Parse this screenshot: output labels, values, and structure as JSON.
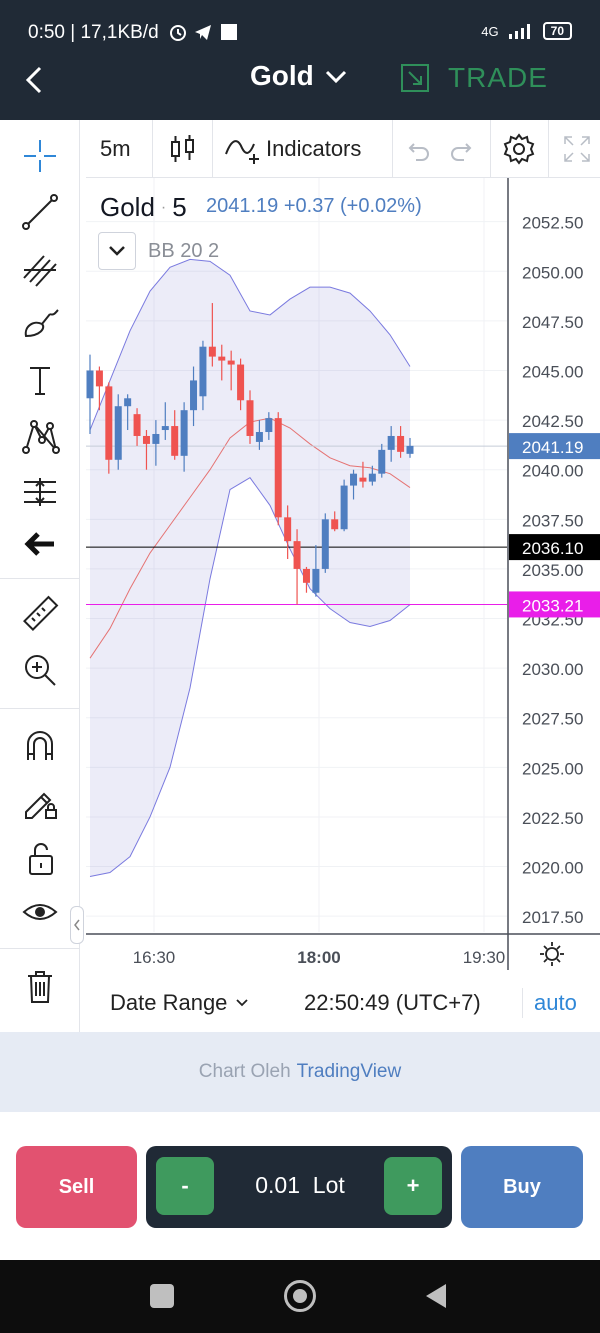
{
  "status_bar": {
    "left_text": "0:50 | 17,1KB/d",
    "network": "4G",
    "battery": "70"
  },
  "header": {
    "title": "Gold",
    "trade_label": "TRADE",
    "accent_green": "#2f8f5a"
  },
  "chart_toolbar": {
    "interval": "5m",
    "indicators_label": "Indicators"
  },
  "legend": {
    "symbol": "Gold",
    "interval": "5",
    "price_info": "2041.19 +0.37 (+0.02%)",
    "indicator_name": "BB",
    "indicator_params": "20 2"
  },
  "chart_data": {
    "type": "candlestick",
    "y_axis_ticks": [
      "2052.50",
      "2050.00",
      "2047.50",
      "2045.00",
      "2042.50",
      "2040.00",
      "2037.50",
      "2035.00",
      "2032.50",
      "2030.00",
      "2027.50",
      "2025.00",
      "2022.50",
      "2020.00",
      "2017.50"
    ],
    "x_axis_ticks": [
      "16:30",
      "18:00",
      "19:30"
    ],
    "ylim": [
      2016.5,
      2054.5
    ],
    "price_labels": [
      {
        "text": "2041.19",
        "value": 2041.19,
        "bg": "#4f7ec0",
        "fg": "#ffffff"
      },
      {
        "text": "2036.10",
        "value": 2036.1,
        "bg": "#000000",
        "fg": "#ffffff"
      },
      {
        "text": "2033.21",
        "value": 2033.21,
        "bg": "#e91ee9",
        "fg": "#ffffff"
      }
    ],
    "up_color": "#4f7ec0",
    "down_color": "#ef5350",
    "candles": [
      {
        "o": 2043.6,
        "h": 2045.8,
        "l": 2041.8,
        "c": 2045.0
      },
      {
        "o": 2045.0,
        "h": 2045.2,
        "l": 2043.0,
        "c": 2044.2
      },
      {
        "o": 2044.2,
        "h": 2044.4,
        "l": 2039.8,
        "c": 2040.5
      },
      {
        "o": 2040.5,
        "h": 2043.8,
        "l": 2040.0,
        "c": 2043.2
      },
      {
        "o": 2043.2,
        "h": 2043.8,
        "l": 2042.0,
        "c": 2043.6
      },
      {
        "o": 2042.8,
        "h": 2043.1,
        "l": 2041.2,
        "c": 2041.7
      },
      {
        "o": 2041.7,
        "h": 2042.0,
        "l": 2040.0,
        "c": 2041.3
      },
      {
        "o": 2041.3,
        "h": 2042.5,
        "l": 2040.2,
        "c": 2041.8
      },
      {
        "o": 2042.0,
        "h": 2043.4,
        "l": 2041.5,
        "c": 2042.2
      },
      {
        "o": 2042.2,
        "h": 2043.0,
        "l": 2040.5,
        "c": 2040.7
      },
      {
        "o": 2040.7,
        "h": 2043.4,
        "l": 2039.9,
        "c": 2043.0
      },
      {
        "o": 2043.0,
        "h": 2045.2,
        "l": 2042.2,
        "c": 2044.5
      },
      {
        "o": 2043.7,
        "h": 2046.5,
        "l": 2043.0,
        "c": 2046.2
      },
      {
        "o": 2046.2,
        "h": 2048.4,
        "l": 2045.2,
        "c": 2045.7
      },
      {
        "o": 2045.7,
        "h": 2046.3,
        "l": 2044.5,
        "c": 2045.5
      },
      {
        "o": 2045.5,
        "h": 2046.0,
        "l": 2044.0,
        "c": 2045.3
      },
      {
        "o": 2045.3,
        "h": 2045.6,
        "l": 2043.0,
        "c": 2043.5
      },
      {
        "o": 2043.5,
        "h": 2044.0,
        "l": 2041.3,
        "c": 2041.7
      },
      {
        "o": 2041.4,
        "h": 2042.5,
        "l": 2041.0,
        "c": 2041.9
      },
      {
        "o": 2041.9,
        "h": 2042.9,
        "l": 2041.5,
        "c": 2042.6
      },
      {
        "o": 2042.6,
        "h": 2042.9,
        "l": 2037.2,
        "c": 2037.6
      },
      {
        "o": 2037.6,
        "h": 2038.2,
        "l": 2035.5,
        "c": 2036.4
      },
      {
        "o": 2036.4,
        "h": 2037.0,
        "l": 2033.2,
        "c": 2035.0
      },
      {
        "o": 2035.0,
        "h": 2035.1,
        "l": 2033.8,
        "c": 2034.3
      },
      {
        "o": 2033.8,
        "h": 2036.2,
        "l": 2033.6,
        "c": 2035.0
      },
      {
        "o": 2035.0,
        "h": 2037.8,
        "l": 2034.8,
        "c": 2037.5
      },
      {
        "o": 2037.5,
        "h": 2037.9,
        "l": 2036.9,
        "c": 2037.0
      },
      {
        "o": 2037.0,
        "h": 2039.5,
        "l": 2036.9,
        "c": 2039.2
      },
      {
        "o": 2039.2,
        "h": 2040.0,
        "l": 2038.5,
        "c": 2039.8
      },
      {
        "o": 2039.6,
        "h": 2040.4,
        "l": 2039.1,
        "c": 2039.4
      },
      {
        "o": 2039.4,
        "h": 2040.2,
        "l": 2039.2,
        "c": 2039.8
      },
      {
        "o": 2039.8,
        "h": 2041.3,
        "l": 2039.6,
        "c": 2041.0
      },
      {
        "o": 2041.0,
        "h": 2042.2,
        "l": 2040.4,
        "c": 2041.7
      },
      {
        "o": 2041.7,
        "h": 2042.2,
        "l": 2040.6,
        "c": 2040.9
      },
      {
        "o": 2040.8,
        "h": 2041.6,
        "l": 2040.6,
        "c": 2041.2
      }
    ],
    "bb_upper": [
      2042.0,
      2044.5,
      2047.0,
      2049.0,
      2050.2,
      2050.6,
      2050.5,
      2049.8,
      2048.0,
      2047.8,
      2048.6,
      2049.2,
      2049.2,
      2048.9,
      2048.0,
      2046.8,
      2045.2
    ],
    "bb_middle": [
      2030.5,
      2032.0,
      2034.0,
      2035.8,
      2037.2,
      2038.6,
      2040.0,
      2041.6,
      2042.4,
      2042.6,
      2042.1,
      2041.3,
      2040.6,
      2040.2,
      2040.1,
      2039.8,
      2039.1
    ],
    "bb_lower": [
      2019.5,
      2019.7,
      2020.5,
      2022.5,
      2025.0,
      2029.0,
      2034.5,
      2039.0,
      2039.6,
      2038.2,
      2036.0,
      2034.0,
      2033.0,
      2032.3,
      2032.1,
      2032.4,
      2033.2
    ]
  },
  "date_bar": {
    "date_range_label": "Date Range",
    "clock": "22:50:49 (UTC+7)",
    "auto_label": "auto"
  },
  "attribution": {
    "prefix": "Chart Oleh",
    "brand": "TradingView"
  },
  "trade_panel": {
    "sell_label": "Sell",
    "buy_label": "Buy",
    "minus_label": "-",
    "plus_label": "+",
    "lot_value": "0.01  Lot",
    "sell_color": "#e25270",
    "buy_color": "#4f7ec0",
    "step_color": "#3f9a5e"
  }
}
